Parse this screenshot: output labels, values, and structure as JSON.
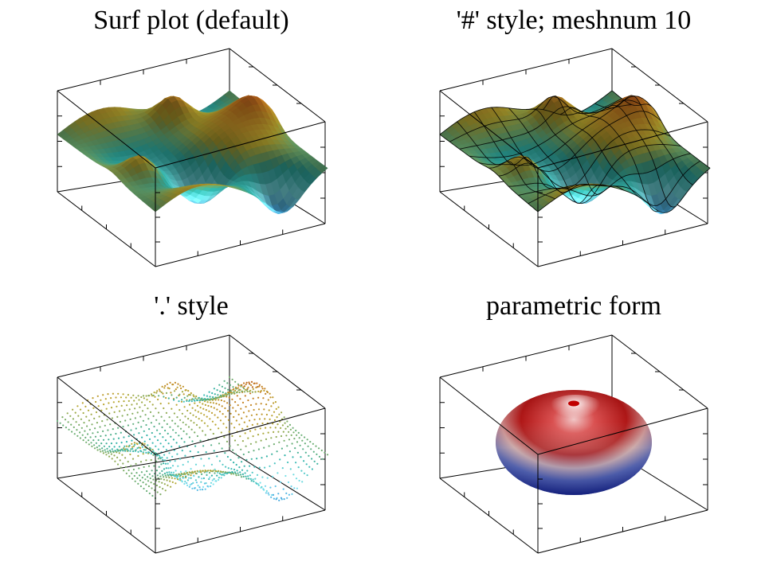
{
  "colors": {
    "background": "#ffffff",
    "axis": "#000000",
    "colormap": [
      "#1a2f8a",
      "#2f8fd8",
      "#7fe6f0",
      "#2fb2a8",
      "#b8a830",
      "#c87a20",
      "#8a1010"
    ],
    "sphere_top": "#b01818",
    "sphere_mid": "#f0e8e8",
    "sphere_bottom": "#101a8c"
  },
  "chart_data": [
    {
      "type": "surface",
      "style": "default",
      "title": "Surf plot (default)",
      "xlabel": "",
      "ylabel": "",
      "zlabel": "",
      "x_range": [
        -1,
        1
      ],
      "y_range": [
        -1,
        1
      ],
      "z_range": [
        -1,
        1
      ],
      "grid": false,
      "function": "smooth random hills surface"
    },
    {
      "type": "surface",
      "style": "#",
      "meshnum": 10,
      "title": "'#' style; meshnum 10",
      "xlabel": "",
      "ylabel": "",
      "zlabel": "",
      "x_range": [
        -1,
        1
      ],
      "y_range": [
        -1,
        1
      ],
      "z_range": [
        -1,
        1
      ],
      "grid": false
    },
    {
      "type": "surface",
      "style": ".",
      "title": "'.' style",
      "xlabel": "",
      "ylabel": "",
      "zlabel": "",
      "x_range": [
        -1,
        1
      ],
      "y_range": [
        -1,
        1
      ],
      "z_range": [
        -1,
        1
      ],
      "grid": false
    },
    {
      "type": "surface",
      "style": "parametric",
      "title": "parametric form",
      "xlabel": "",
      "ylabel": "",
      "zlabel": "",
      "x_range": [
        -1,
        1
      ],
      "y_range": [
        -1,
        1
      ],
      "z_range": [
        -1,
        1
      ],
      "grid": false,
      "shape": "sphere"
    }
  ]
}
